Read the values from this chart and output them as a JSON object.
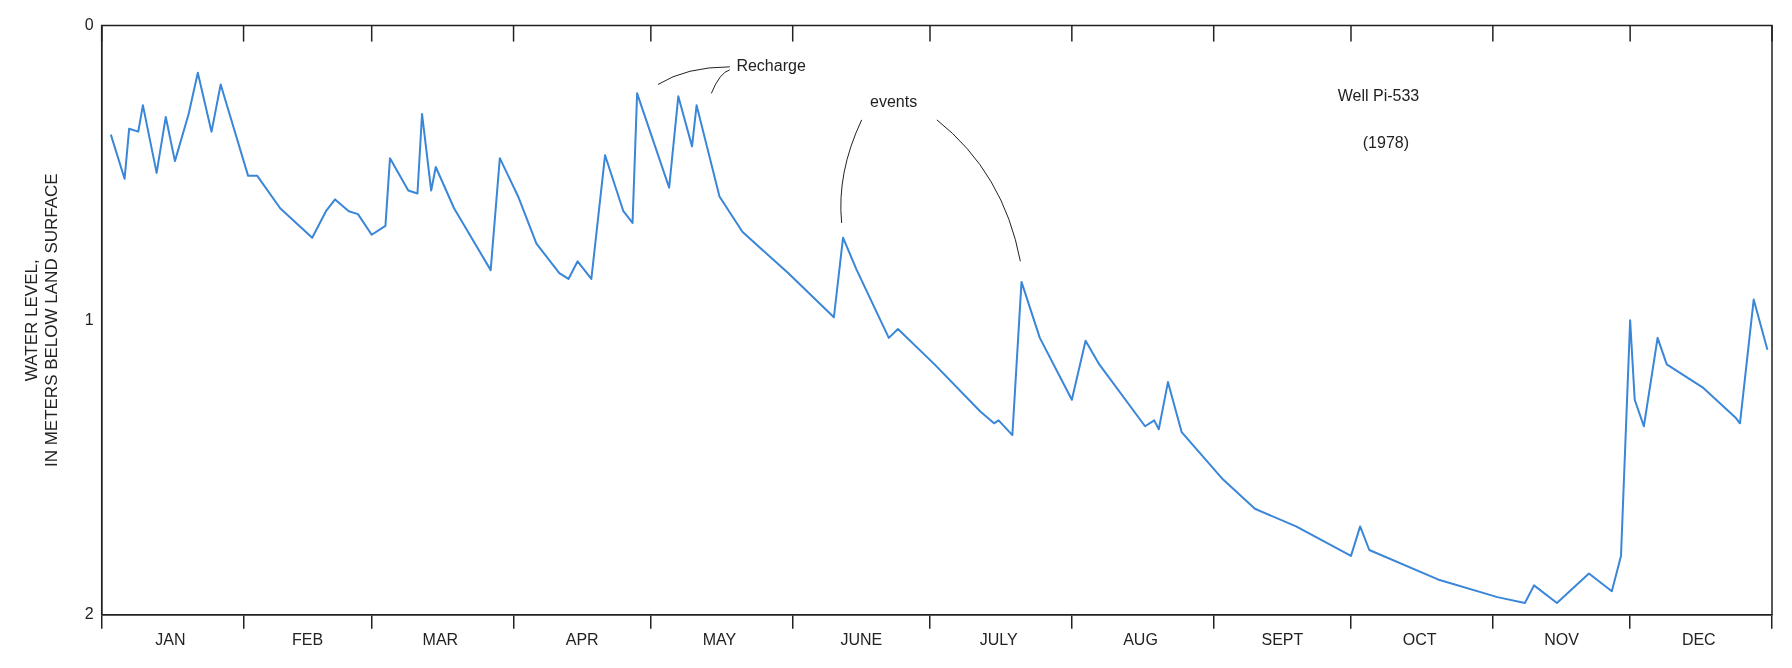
{
  "chart_data": {
    "type": "line",
    "ylabel": "WATER LEVEL,\nIN METERS BELOW LAND SURFACE",
    "annotations": [
      "Recharge events",
      "Well Pi-533",
      "(1978)"
    ],
    "xlim": [
      "1978-01-01",
      "1979-01-01"
    ],
    "xticks": [
      {
        "value": "1978-01-01",
        "label": null
      },
      {
        "value": "1978-01-16",
        "label": "JAN"
      },
      {
        "value": "1978-02-01",
        "label": null
      },
      {
        "value": "1978-02-15",
        "label": "FEB"
      },
      {
        "value": "1978-03-01",
        "label": null
      },
      {
        "value": "1978-03-16",
        "label": "MAR"
      },
      {
        "value": "1978-04-01",
        "label": null
      },
      {
        "value": "1978-04-16",
        "label": "APR"
      },
      {
        "value": "1978-05-01",
        "label": null
      },
      {
        "value": "1978-05-16",
        "label": "MAY"
      },
      {
        "value": "1978-06-01",
        "label": null
      },
      {
        "value": "1978-06-16",
        "label": "JUNE"
      },
      {
        "value": "1978-07-01",
        "label": null
      },
      {
        "value": "1978-07-16",
        "label": "JULY"
      },
      {
        "value": "1978-08-01",
        "label": null
      },
      {
        "value": "1978-08-16",
        "label": "AUG"
      },
      {
        "value": "1978-09-01",
        "label": null
      },
      {
        "value": "1978-09-16",
        "label": "SEPT"
      },
      {
        "value": "1978-10-01",
        "label": null
      },
      {
        "value": "1978-10-16",
        "label": "OCT"
      },
      {
        "value": "1978-11-01",
        "label": null
      },
      {
        "value": "1978-11-16",
        "label": "NOV"
      },
      {
        "value": "1978-12-01",
        "label": null
      },
      {
        "value": "1978-12-16",
        "label": "DEC"
      },
      {
        "value": "1979-01-01",
        "label": null
      }
    ],
    "ylim": [
      2,
      0
    ],
    "yticks": [
      0,
      1,
      2
    ],
    "grid": false,
    "legend": false,
    "marker": "none",
    "line_style": "solid",
    "x": [
      "1978-01-03",
      "1978-01-06",
      "1978-01-07",
      "1978-01-09",
      "1978-01-10",
      "1978-01-13",
      "1978-01-15",
      "1978-01-17",
      "1978-01-20",
      "1978-01-22",
      "1978-01-25",
      "1978-01-27",
      "1978-02-02",
      "1978-02-04",
      "1978-02-09",
      "1978-02-16",
      "1978-02-19",
      "1978-02-21",
      "1978-02-24",
      "1978-02-26",
      "1978-03-01",
      "1978-03-04",
      "1978-03-05",
      "1978-03-09",
      "1978-03-11",
      "1978-03-12",
      "1978-03-14",
      "1978-03-15",
      "1978-03-19",
      "1978-03-27",
      "1978-03-29",
      "1978-04-02",
      "1978-04-06",
      "1978-04-11",
      "1978-04-13",
      "1978-04-15",
      "1978-04-18",
      "1978-04-21",
      "1978-04-25",
      "1978-04-27",
      "1978-04-28",
      "1978-05-05",
      "1978-05-07",
      "1978-05-10",
      "1978-05-11",
      "1978-05-16",
      "1978-05-21",
      "1978-05-31",
      "1978-06-10",
      "1978-06-12",
      "1978-06-15",
      "1978-06-22",
      "1978-06-24",
      "1978-07-02",
      "1978-07-12",
      "1978-07-15",
      "1978-07-16",
      "1978-07-19",
      "1978-07-21",
      "1978-07-25",
      "1978-08-01",
      "1978-08-04",
      "1978-08-07",
      "1978-08-17",
      "1978-08-19",
      "1978-08-20",
      "1978-08-22",
      "1978-08-25",
      "1978-09-03",
      "1978-09-10",
      "1978-09-19",
      "1978-10-01",
      "1978-10-03",
      "1978-10-05",
      "1978-10-20",
      "1978-11-02",
      "1978-11-08",
      "1978-11-10",
      "1978-11-15",
      "1978-11-22",
      "1978-11-27",
      "1978-11-29",
      "1978-12-01",
      "1978-12-02",
      "1978-12-04",
      "1978-12-07",
      "1978-12-09",
      "1978-12-17",
      "1978-12-24",
      "1978-12-25",
      "1978-12-28",
      "1978-12-31"
    ],
    "series": [
      {
        "color": "#3a86d8",
        "values": [
          0.37,
          0.52,
          0.35,
          0.36,
          0.27,
          0.5,
          0.31,
          0.46,
          0.3,
          0.16,
          0.36,
          0.2,
          0.51,
          0.51,
          0.62,
          0.72,
          0.63,
          0.59,
          0.63,
          0.64,
          0.71,
          0.68,
          0.45,
          0.56,
          0.57,
          0.3,
          0.56,
          0.48,
          0.62,
          0.83,
          0.45,
          0.58,
          0.74,
          0.84,
          0.86,
          0.8,
          0.86,
          0.44,
          0.63,
          0.67,
          0.23,
          0.55,
          0.24,
          0.41,
          0.27,
          0.58,
          0.7,
          0.84,
          0.99,
          0.72,
          0.83,
          1.06,
          1.03,
          1.15,
          1.31,
          1.35,
          1.34,
          1.39,
          0.87,
          1.06,
          1.27,
          1.07,
          1.15,
          1.36,
          1.34,
          1.37,
          1.21,
          1.38,
          1.54,
          1.64,
          1.7,
          1.8,
          1.7,
          1.78,
          1.88,
          1.94,
          1.96,
          1.9,
          1.96,
          1.86,
          1.92,
          1.8,
          1.0,
          1.27,
          1.36,
          1.06,
          1.15,
          1.23,
          1.33,
          1.35,
          0.93,
          1.1
        ]
      }
    ]
  }
}
